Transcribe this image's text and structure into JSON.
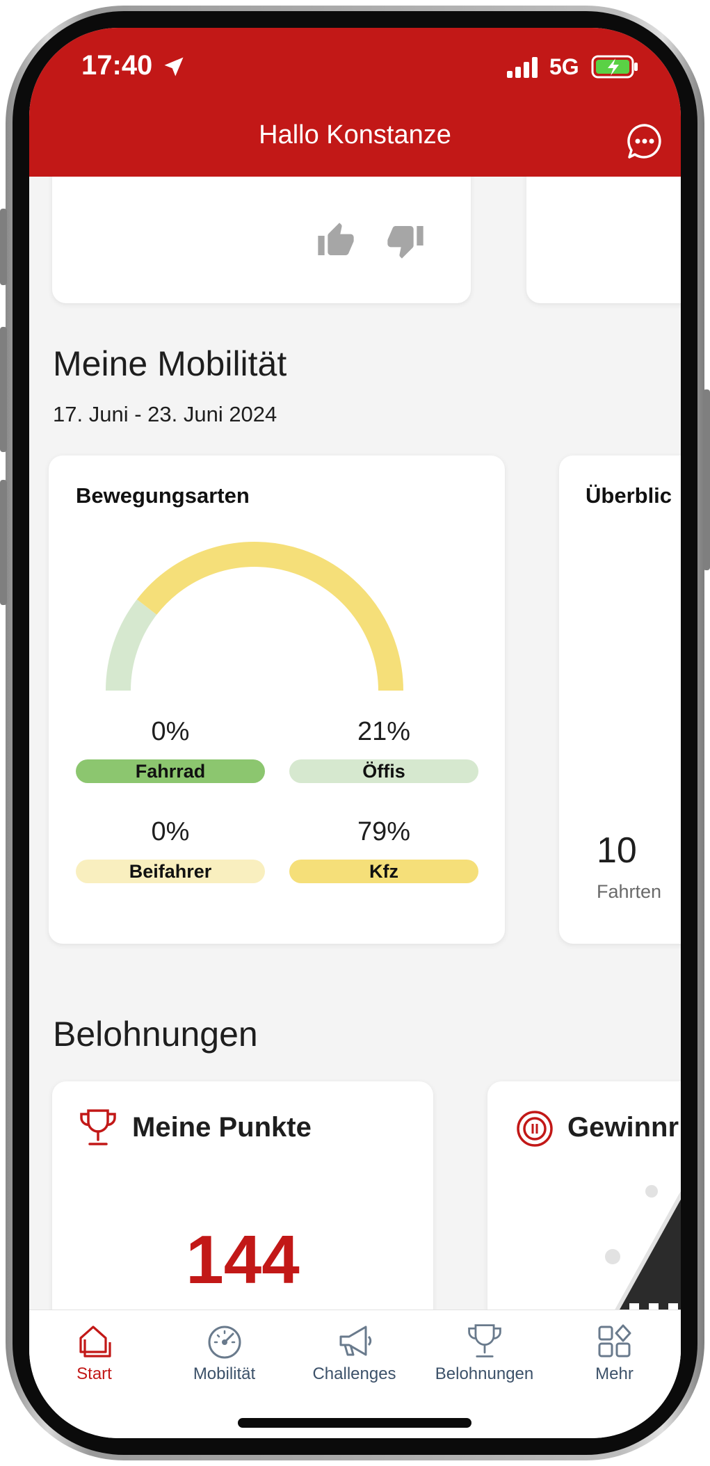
{
  "status_bar": {
    "time": "17:40",
    "network": "5G"
  },
  "header": {
    "title": "Hallo Konstanze"
  },
  "mobility": {
    "title": "Meine Mobilität",
    "date_range": "17. Juni  - 23. Juni 2024",
    "card_title": "Bewegungsarten",
    "modes": [
      {
        "percent": "0%",
        "label": "Fahrrad",
        "color": "#8cc66f"
      },
      {
        "percent": "21%",
        "label": "Öffis",
        "color": "#d6e8cf"
      },
      {
        "percent": "0%",
        "label": "Beifahrer",
        "color": "#f9efbf"
      },
      {
        "percent": "79%",
        "label": "Kfz",
        "color": "#f5df79"
      }
    ],
    "overview": {
      "title": "Überblic",
      "count": "10",
      "count_label": "Fahrten"
    }
  },
  "chart_data": {
    "type": "pie",
    "shape": "half-donut",
    "categories": [
      "Fahrrad",
      "Öffis",
      "Beifahrer",
      "Kfz"
    ],
    "values": [
      0,
      21,
      0,
      79
    ],
    "colors": [
      "#8cc66f",
      "#d6e8cf",
      "#f9efbf",
      "#f5df79"
    ]
  },
  "rewards": {
    "title": "Belohnungen",
    "points_title": "Meine Punkte",
    "points_value": "144",
    "prize_title": "Gewinnr"
  },
  "nav": {
    "items": [
      {
        "label": "Start",
        "icon": "home-icon"
      },
      {
        "label": "Mobilität",
        "icon": "speedometer-icon"
      },
      {
        "label": "Challenges",
        "icon": "megaphone-icon"
      },
      {
        "label": "Belohnungen",
        "icon": "trophy-icon"
      },
      {
        "label": "Mehr",
        "icon": "grid-icon"
      }
    ]
  },
  "colors": {
    "brand_red": "#c21817",
    "nav_text": "#3c5169"
  }
}
